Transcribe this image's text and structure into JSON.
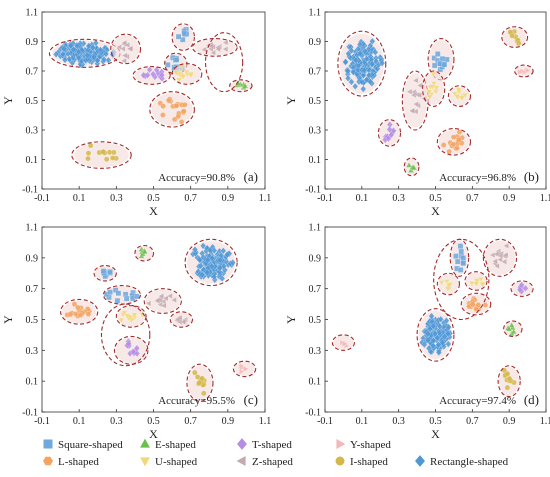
{
  "chart_data": {
    "type": "scatter",
    "panels": [
      {
        "label": "(a)",
        "accuracy_text": "Accuracy=90.8%",
        "xlabel": "X",
        "ylabel": "Y",
        "xlim": [
          -0.1,
          1.1
        ],
        "ylim": [
          -0.1,
          1.1
        ],
        "clusters": [
          {
            "shape": "Rectangle-shaped",
            "cx": 0.13,
            "cy": 0.82,
            "rx": 0.19,
            "ry": 0.095,
            "n": 160,
            "sx": 0.08,
            "sy": 0.04
          },
          {
            "shape": "Square-shaped",
            "cx": 0.66,
            "cy": 0.93,
            "rx": 0.06,
            "ry": 0.09,
            "n": 8,
            "sx": 0.015,
            "sy": 0.03
          },
          {
            "shape": "Square-shaped",
            "cx": 0.62,
            "cy": 0.75,
            "rx": 0.06,
            "ry": 0.07,
            "n": 10,
            "sx": 0.025,
            "sy": 0.03
          },
          {
            "shape": "Z-shaped",
            "cx": 0.35,
            "cy": 0.85,
            "rx": 0.08,
            "ry": 0.1,
            "n": 10,
            "sx": 0.02,
            "sy": 0.035
          },
          {
            "shape": "T-shaped",
            "cx": 0.49,
            "cy": 0.67,
            "rx": 0.1,
            "ry": 0.06,
            "n": 12,
            "sx": 0.04,
            "sy": 0.02
          },
          {
            "shape": "U-shaped",
            "cx": 0.68,
            "cy": 0.68,
            "rx": 0.08,
            "ry": 0.07,
            "n": 12,
            "sx": 0.025,
            "sy": 0.025
          },
          {
            "shape": "Z-shaped",
            "cx": 0.83,
            "cy": 0.86,
            "rx": 0.12,
            "ry": 0.06,
            "n": 12,
            "sx": 0.05,
            "sy": 0.02
          },
          {
            "shape": "E-shaped",
            "cx": 0.97,
            "cy": 0.6,
            "rx": 0.06,
            "ry": 0.04,
            "n": 6,
            "sx": 0.02,
            "sy": 0.01
          },
          {
            "shape": "L-shaped",
            "cx": 0.6,
            "cy": 0.44,
            "rx": 0.12,
            "ry": 0.12,
            "n": 18,
            "sx": 0.04,
            "sy": 0.04
          },
          {
            "shape": "I-shaped",
            "cx": 0.22,
            "cy": 0.13,
            "rx": 0.16,
            "ry": 0.09,
            "n": 12,
            "sx": 0.05,
            "sy": 0.03
          }
        ],
        "outer_ellipses": [
          {
            "cx": 0.88,
            "cy": 0.76,
            "rx": 0.1,
            "ry": 0.2
          }
        ]
      },
      {
        "label": "(b)",
        "accuracy_text": "Accuracy=96.8%",
        "xlabel": "X",
        "ylabel": "Y",
        "xlim": [
          -0.1,
          1.1
        ],
        "ylim": [
          -0.1,
          1.1
        ],
        "clusters": [
          {
            "shape": "Rectangle-shaped",
            "cx": 0.1,
            "cy": 0.75,
            "rx": 0.13,
            "ry": 0.22,
            "n": 150,
            "sx": 0.05,
            "sy": 0.08
          },
          {
            "shape": "Square-shaped",
            "cx": 0.53,
            "cy": 0.78,
            "rx": 0.07,
            "ry": 0.14,
            "n": 12,
            "sx": 0.02,
            "sy": 0.05
          },
          {
            "shape": "Z-shaped",
            "cx": 0.39,
            "cy": 0.5,
            "rx": 0.07,
            "ry": 0.2,
            "n": 14,
            "sx": 0.02,
            "sy": 0.07
          },
          {
            "shape": "U-shaped",
            "cx": 0.49,
            "cy": 0.58,
            "rx": 0.06,
            "ry": 0.12,
            "n": 10,
            "sx": 0.015,
            "sy": 0.04
          },
          {
            "shape": "U-shaped",
            "cx": 0.63,
            "cy": 0.53,
            "rx": 0.06,
            "ry": 0.07,
            "n": 10,
            "sx": 0.02,
            "sy": 0.02
          },
          {
            "shape": "T-shaped",
            "cx": 0.25,
            "cy": 0.28,
            "rx": 0.06,
            "ry": 0.09,
            "n": 10,
            "sx": 0.015,
            "sy": 0.03
          },
          {
            "shape": "L-shaped",
            "cx": 0.6,
            "cy": 0.22,
            "rx": 0.09,
            "ry": 0.09,
            "n": 16,
            "sx": 0.03,
            "sy": 0.03
          },
          {
            "shape": "E-shaped",
            "cx": 0.37,
            "cy": 0.05,
            "rx": 0.04,
            "ry": 0.06,
            "n": 5,
            "sx": 0.01,
            "sy": 0.015
          },
          {
            "shape": "I-shaped",
            "cx": 0.93,
            "cy": 0.93,
            "rx": 0.07,
            "ry": 0.07,
            "n": 8,
            "sx": 0.02,
            "sy": 0.025
          },
          {
            "shape": "Y-shaped",
            "cx": 0.98,
            "cy": 0.7,
            "rx": 0.05,
            "ry": 0.04,
            "n": 5,
            "sx": 0.015,
            "sy": 0.01
          }
        ],
        "outer_ellipses": []
      },
      {
        "label": "(c)",
        "accuracy_text": "Accuracy=95.5%",
        "xlabel": "X",
        "ylabel": "Y",
        "xlim": [
          -0.1,
          1.1
        ],
        "ylim": [
          -0.1,
          1.1
        ],
        "clusters": [
          {
            "shape": "Rectangle-shaped",
            "cx": 0.81,
            "cy": 0.87,
            "rx": 0.14,
            "ry": 0.15,
            "n": 150,
            "sx": 0.05,
            "sy": 0.055
          },
          {
            "shape": "E-shaped",
            "cx": 0.45,
            "cy": 0.93,
            "rx": 0.05,
            "ry": 0.05,
            "n": 6,
            "sx": 0.012,
            "sy": 0.015
          },
          {
            "shape": "Square-shaped",
            "cx": 0.24,
            "cy": 0.8,
            "rx": 0.06,
            "ry": 0.05,
            "n": 8,
            "sx": 0.02,
            "sy": 0.012
          },
          {
            "shape": "Square-shaped",
            "cx": 0.33,
            "cy": 0.66,
            "rx": 0.1,
            "ry": 0.06,
            "n": 12,
            "sx": 0.04,
            "sy": 0.02
          },
          {
            "shape": "L-shaped",
            "cx": 0.1,
            "cy": 0.55,
            "rx": 0.1,
            "ry": 0.08,
            "n": 16,
            "sx": 0.035,
            "sy": 0.025
          },
          {
            "shape": "U-shaped",
            "cx": 0.38,
            "cy": 0.52,
            "rx": 0.08,
            "ry": 0.07,
            "n": 10,
            "sx": 0.025,
            "sy": 0.02
          },
          {
            "shape": "Z-shaped",
            "cx": 0.55,
            "cy": 0.62,
            "rx": 0.1,
            "ry": 0.08,
            "n": 12,
            "sx": 0.04,
            "sy": 0.025
          },
          {
            "shape": "Z-shaped",
            "cx": 0.65,
            "cy": 0.5,
            "rx": 0.06,
            "ry": 0.05,
            "n": 8,
            "sx": 0.02,
            "sy": 0.015
          },
          {
            "shape": "T-shaped",
            "cx": 0.38,
            "cy": 0.3,
            "rx": 0.09,
            "ry": 0.09,
            "n": 10,
            "sx": 0.025,
            "sy": 0.025
          },
          {
            "shape": "I-shaped",
            "cx": 0.75,
            "cy": 0.09,
            "rx": 0.07,
            "ry": 0.12,
            "n": 12,
            "sx": 0.02,
            "sy": 0.04
          },
          {
            "shape": "Y-shaped",
            "cx": 0.99,
            "cy": 0.18,
            "rx": 0.06,
            "ry": 0.05,
            "n": 5,
            "sx": 0.015,
            "sy": 0.012
          }
        ],
        "outer_ellipses": [
          {
            "cx": 0.35,
            "cy": 0.4,
            "rx": 0.13,
            "ry": 0.2
          }
        ]
      },
      {
        "label": "(d)",
        "accuracy_text": "Accuracy=97.4%",
        "xlabel": "X",
        "ylabel": "Y",
        "xlim": [
          -0.1,
          1.1
        ],
        "ylim": [
          -0.1,
          1.1
        ],
        "clusters": [
          {
            "shape": "Rectangle-shaped",
            "cx": 0.5,
            "cy": 0.4,
            "rx": 0.1,
            "ry": 0.17,
            "n": 130,
            "sx": 0.04,
            "sy": 0.06
          },
          {
            "shape": "Square-shaped",
            "cx": 0.63,
            "cy": 0.9,
            "rx": 0.05,
            "ry": 0.12,
            "n": 10,
            "sx": 0.015,
            "sy": 0.04
          },
          {
            "shape": "U-shaped",
            "cx": 0.57,
            "cy": 0.73,
            "rx": 0.06,
            "ry": 0.07,
            "n": 8,
            "sx": 0.02,
            "sy": 0.02
          },
          {
            "shape": "U-shaped",
            "cx": 0.72,
            "cy": 0.75,
            "rx": 0.06,
            "ry": 0.06,
            "n": 8,
            "sx": 0.02,
            "sy": 0.02
          },
          {
            "shape": "Z-shaped",
            "cx": 0.85,
            "cy": 0.9,
            "rx": 0.09,
            "ry": 0.12,
            "n": 14,
            "sx": 0.03,
            "sy": 0.04
          },
          {
            "shape": "L-shaped",
            "cx": 0.72,
            "cy": 0.6,
            "rx": 0.08,
            "ry": 0.07,
            "n": 14,
            "sx": 0.03,
            "sy": 0.02
          },
          {
            "shape": "T-shaped",
            "cx": 0.97,
            "cy": 0.7,
            "rx": 0.06,
            "ry": 0.05,
            "n": 6,
            "sx": 0.02,
            "sy": 0.012
          },
          {
            "shape": "E-shaped",
            "cx": 0.92,
            "cy": 0.44,
            "rx": 0.05,
            "ry": 0.05,
            "n": 6,
            "sx": 0.012,
            "sy": 0.012
          },
          {
            "shape": "I-shaped",
            "cx": 0.9,
            "cy": 0.1,
            "rx": 0.06,
            "ry": 0.1,
            "n": 10,
            "sx": 0.015,
            "sy": 0.035
          },
          {
            "shape": "Y-shaped",
            "cx": 0.0,
            "cy": 0.35,
            "rx": 0.06,
            "ry": 0.05,
            "n": 4,
            "sx": 0.012,
            "sy": 0.01
          }
        ],
        "outer_ellipses": [
          {
            "cx": 0.64,
            "cy": 0.76,
            "rx": 0.15,
            "ry": 0.26
          }
        ]
      }
    ],
    "x_ticks": [
      "-0.1",
      "0.1",
      "0.3",
      "0.5",
      "0.7",
      "0.9",
      "1.1"
    ],
    "y_ticks": [
      "-0.1",
      "0.1",
      "0.3",
      "0.5",
      "0.7",
      "0.9",
      "1.1"
    ],
    "legend": [
      {
        "shape": "Square-shaped",
        "label": "Square-shaped",
        "marker": "square",
        "color": "#6fa8dc"
      },
      {
        "shape": "E-shaped",
        "label": "E-shaped",
        "marker": "triangle-up",
        "color": "#6abf4b"
      },
      {
        "shape": "T-shaped",
        "label": "T-shaped",
        "marker": "diamond",
        "color": "#b48ee6"
      },
      {
        "shape": "Y-shaped",
        "label": "Y-shaped",
        "marker": "triangle-right",
        "color": "#f4b8b8"
      },
      {
        "shape": "L-shaped",
        "label": "L-shaped",
        "marker": "hexagon",
        "color": "#f4a460"
      },
      {
        "shape": "U-shaped",
        "label": "U-shaped",
        "marker": "triangle-down",
        "color": "#f0d878"
      },
      {
        "shape": "Z-shaped",
        "label": "Z-shaped",
        "marker": "triangle-left",
        "color": "#c4aab0"
      },
      {
        "shape": "I-shaped",
        "label": "I-shaped",
        "marker": "circle",
        "color": "#d4b84a"
      },
      {
        "shape": "Rectangle-shaped",
        "label": "Rectangle-shaped",
        "marker": "diamond",
        "color": "#4f97d6"
      }
    ],
    "ellipse_color": "#a52a2a",
    "halo_color": "#f3dada"
  }
}
